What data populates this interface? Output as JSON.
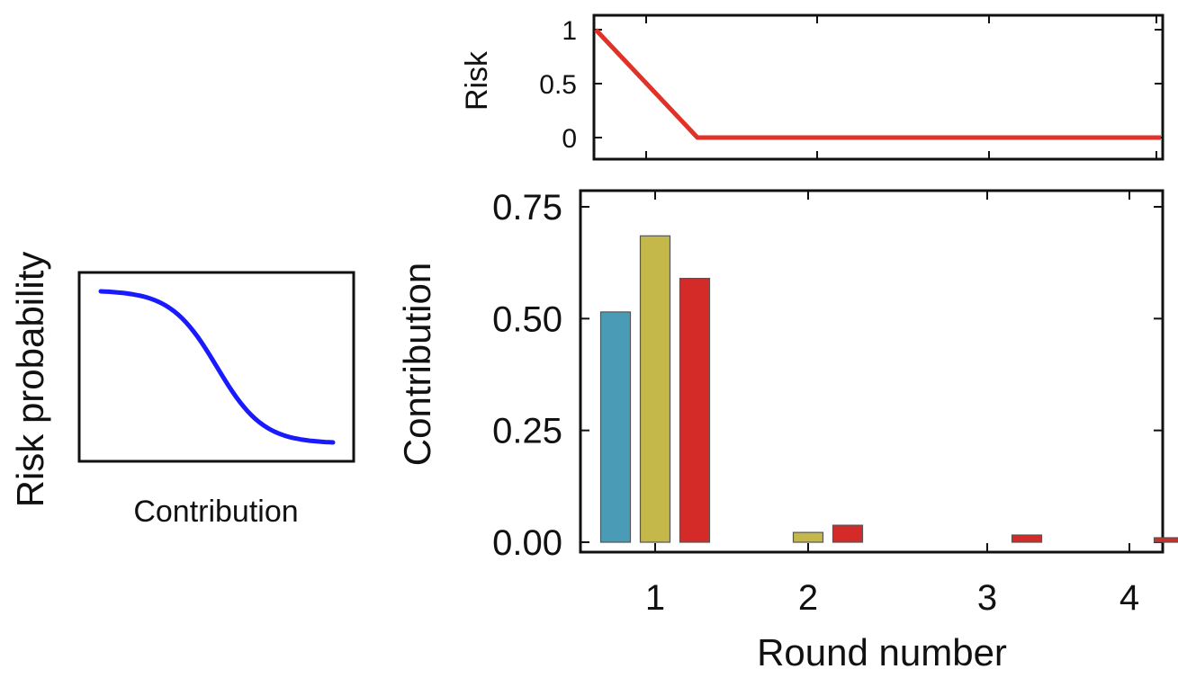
{
  "chart_data": [
    {
      "panel": "inset",
      "type": "line",
      "xlabel": "Contribution",
      "ylabel": "Risk probability",
      "colors": {
        "curve": "#1a1aff"
      }
    },
    {
      "panel": "top",
      "type": "line",
      "ylabel": "Risk",
      "x": [
        1,
        1.3,
        2,
        3,
        4
      ],
      "values": [
        1,
        0,
        0,
        0,
        0
      ],
      "ylim": [
        0,
        1
      ],
      "yticks": [
        "0",
        "0.5",
        "1"
      ],
      "colors": {
        "line": "#e03228"
      }
    },
    {
      "panel": "bottom",
      "type": "bar",
      "xlabel": "Round number",
      "ylabel": "Contribution",
      "categories": [
        "1",
        "2",
        "3",
        "4"
      ],
      "yticks": [
        "0.00",
        "0.25",
        "0.50",
        "0.75"
      ],
      "ylim": [
        0,
        0.78
      ],
      "series": [
        {
          "values": [
            0.515,
            0.0,
            0.0,
            0.0
          ],
          "color": "#4a9bb5"
        },
        {
          "values": [
            0.685,
            0.022,
            0.0,
            0.0
          ],
          "color": "#c4b84a"
        },
        {
          "values": [
            0.59,
            0.038,
            0.016,
            0.01
          ],
          "color": "#d42a28"
        }
      ]
    }
  ]
}
